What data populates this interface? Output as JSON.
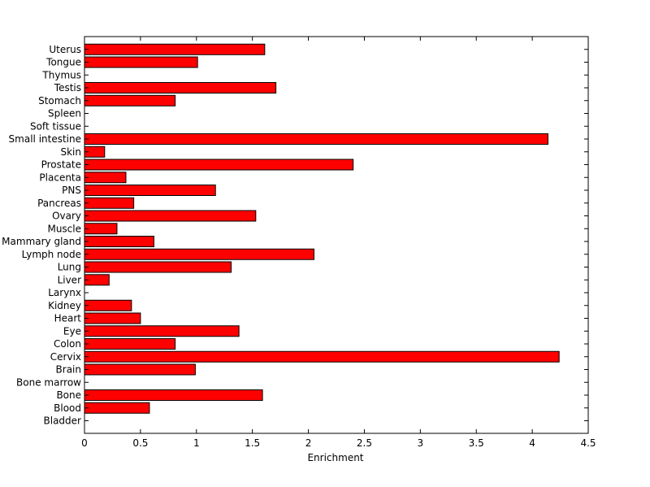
{
  "chart_data": {
    "type": "bar",
    "orientation": "horizontal",
    "title": "",
    "xlabel": "Enrichment",
    "ylabel": "",
    "xlim": [
      0,
      4.5
    ],
    "xticks": [
      "0",
      "0.5",
      "1",
      "1.5",
      "2",
      "2.5",
      "3",
      "3.5",
      "4",
      "4.5"
    ],
    "grid": false,
    "legend": "none",
    "bar_color": "#ff0000",
    "categories": [
      "Bladder",
      "Blood",
      "Bone",
      "Bone marrow",
      "Brain",
      "Cervix",
      "Colon",
      "Eye",
      "Heart",
      "Kidney",
      "Larynx",
      "Liver",
      "Lung",
      "Lymph node",
      "Mammary gland",
      "Muscle",
      "Ovary",
      "Pancreas",
      "PNS",
      "Placenta",
      "Prostate",
      "Skin",
      "Small intestine",
      "Soft tissue",
      "Spleen",
      "Stomach",
      "Testis",
      "Thymus",
      "Tongue",
      "Uterus"
    ],
    "values": [
      0,
      0.58,
      1.59,
      0,
      0.99,
      4.24,
      0.81,
      1.38,
      0.5,
      0.42,
      0,
      0.22,
      1.31,
      2.05,
      0.62,
      0.29,
      1.53,
      0.44,
      1.17,
      0.37,
      2.4,
      0.18,
      4.14,
      0,
      0,
      0.81,
      1.71,
      0,
      1.01,
      1.61
    ]
  }
}
